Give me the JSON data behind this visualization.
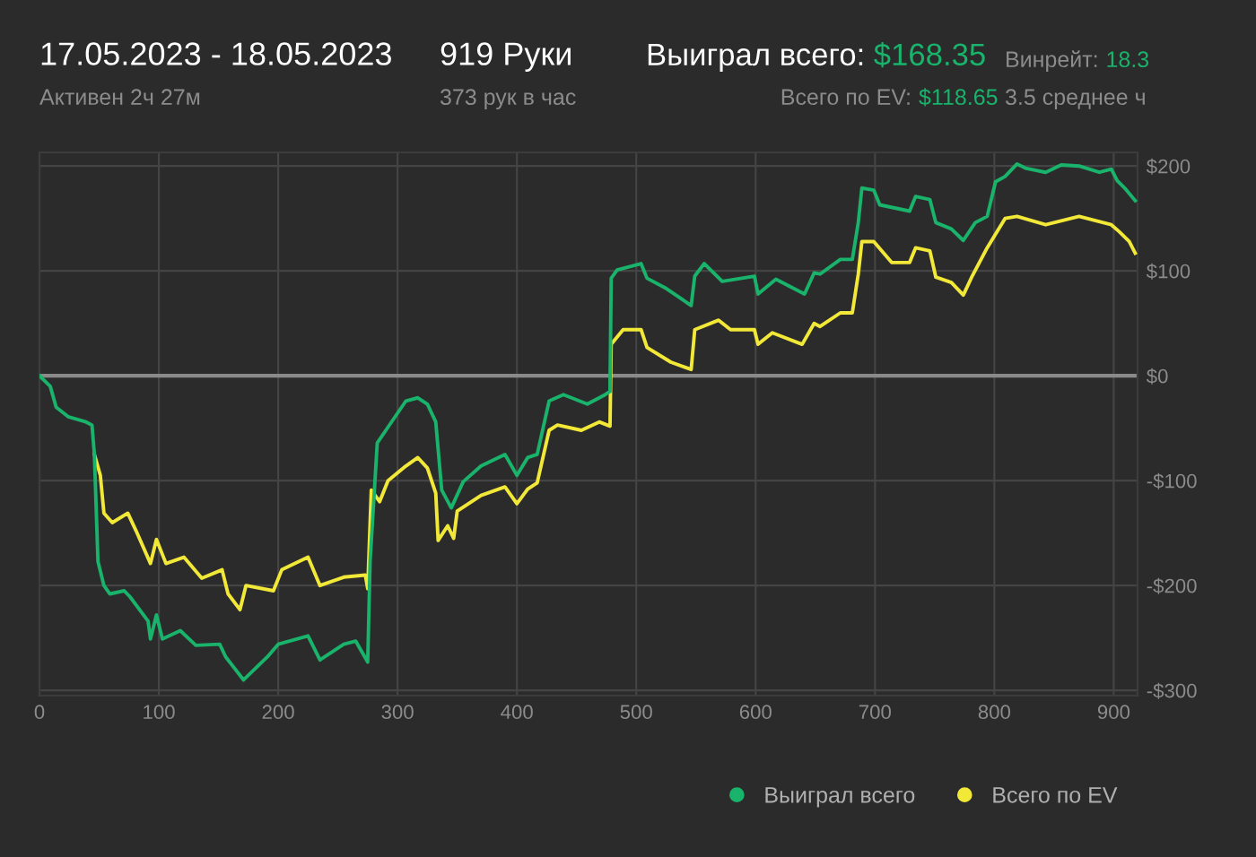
{
  "chart_data": {
    "type": "line",
    "annotations": [
      "17.05.2023 - 18.05.2023",
      "Активен 2ч 27м",
      "919 Руки",
      "373 рук в час",
      "Выиграл всего:",
      "$168.35",
      "Всего по EV:",
      "$118.65",
      "Винрейт:",
      "18.3",
      "3.5 среднее ч"
    ],
    "series": [
      {
        "name": "Выиграл всего",
        "color": "#19b36b",
        "x": [
          0,
          9,
          14,
          24,
          39,
          44,
          46,
          49,
          54,
          59,
          71,
          76,
          91,
          93,
          98,
          103,
          118,
          131,
          151,
          156,
          171,
          191,
          200,
          225,
          235,
          255,
          265,
          275,
          277,
          283,
          292,
          307,
          317,
          325,
          332,
          337,
          345,
          355,
          370,
          390,
          400,
          409,
          417,
          427,
          439,
          459,
          474,
          478,
          479,
          484,
          504,
          509,
          524,
          546,
          549,
          557,
          572,
          599,
          602,
          617,
          641,
          649,
          654,
          671,
          681,
          686,
          689,
          699,
          704,
          729,
          734,
          746,
          751,
          764,
          774,
          784,
          794,
          801,
          809,
          819,
          826,
          843,
          856,
          871,
          888,
          898,
          903,
          910,
          918
        ],
        "values": [
          0,
          -10,
          -30,
          -39,
          -44,
          -47,
          -75,
          -177,
          -200,
          -208,
          -205,
          -211,
          -234,
          -251,
          -228,
          -251,
          -243,
          -257,
          -256,
          -268,
          -290,
          -268,
          -256,
          -248,
          -271,
          -256,
          -253,
          -273,
          -177,
          -64,
          -49,
          -24,
          -21,
          -27,
          -44,
          -109,
          -126,
          -101,
          -86,
          -75,
          -95,
          -78,
          -75,
          -24,
          -18,
          -27,
          -18,
          -15,
          93,
          101,
          107,
          93,
          84,
          67,
          95,
          107,
          90,
          95,
          78,
          92,
          78,
          98,
          97,
          111,
          111,
          146,
          179,
          177,
          163,
          157,
          171,
          168,
          146,
          140,
          129,
          146,
          152,
          185,
          190,
          202,
          198,
          194,
          201,
          200,
          194,
          197,
          186,
          178,
          167
        ]
      },
      {
        "name": "Всего по EV",
        "color": "#f2e838",
        "x": [
          46,
          51,
          54,
          61,
          74,
          81,
          93,
          98,
          106,
          121,
          136,
          153,
          158,
          168,
          173,
          196,
          203,
          225,
          235,
          255,
          273,
          275,
          278,
          285,
          292,
          307,
          317,
          325,
          332,
          334,
          342,
          347,
          350,
          370,
          390,
          400,
          409,
          417,
          427,
          434,
          454,
          469,
          478,
          479,
          489,
          504,
          509,
          529,
          546,
          549,
          569,
          579,
          599,
          602,
          614,
          639,
          649,
          654,
          671,
          681,
          686,
          689,
          699,
          714,
          729,
          734,
          746,
          751,
          764,
          774,
          781,
          794,
          809,
          819,
          843,
          871,
          898,
          905,
          913,
          918
        ],
        "values": [
          -75,
          -95,
          -131,
          -140,
          -131,
          -148,
          -179,
          -156,
          -179,
          -173,
          -193,
          -185,
          -208,
          -223,
          -200,
          -205,
          -185,
          -173,
          -200,
          -192,
          -190,
          -203,
          -109,
          -120,
          -100,
          -86,
          -78,
          -88,
          -112,
          -157,
          -143,
          -155,
          -129,
          -114,
          -106,
          -122,
          -108,
          -102,
          -52,
          -47,
          -52,
          -44,
          -48,
          30,
          44,
          44,
          27,
          13,
          6,
          44,
          53,
          44,
          44,
          30,
          41,
          30,
          50,
          47,
          60,
          60,
          97,
          128,
          128,
          108,
          108,
          122,
          119,
          94,
          89,
          77,
          94,
          122,
          150,
          152,
          144,
          152,
          144,
          137,
          128,
          117
        ]
      }
    ],
    "xlim": [
      0,
      920
    ],
    "xticks": [
      0,
      100,
      200,
      300,
      400,
      500,
      600,
      700,
      800,
      900
    ],
    "ylim": [
      -305,
      213
    ],
    "yticks": [
      {
        "value": 200,
        "label": "$200"
      },
      {
        "value": 100,
        "label": "$100"
      },
      {
        "value": 0,
        "label": "$0"
      },
      {
        "value": -100,
        "label": "-$100"
      },
      {
        "value": -200,
        "label": "-$200"
      },
      {
        "value": -300,
        "label": "-$300"
      }
    ],
    "ref_lines": [
      {
        "axis": "y",
        "value": 0,
        "color": "#8a8a8a"
      }
    ],
    "grid": true,
    "legend": "bottom right",
    "marker": "none",
    "line_style": "solid"
  }
}
